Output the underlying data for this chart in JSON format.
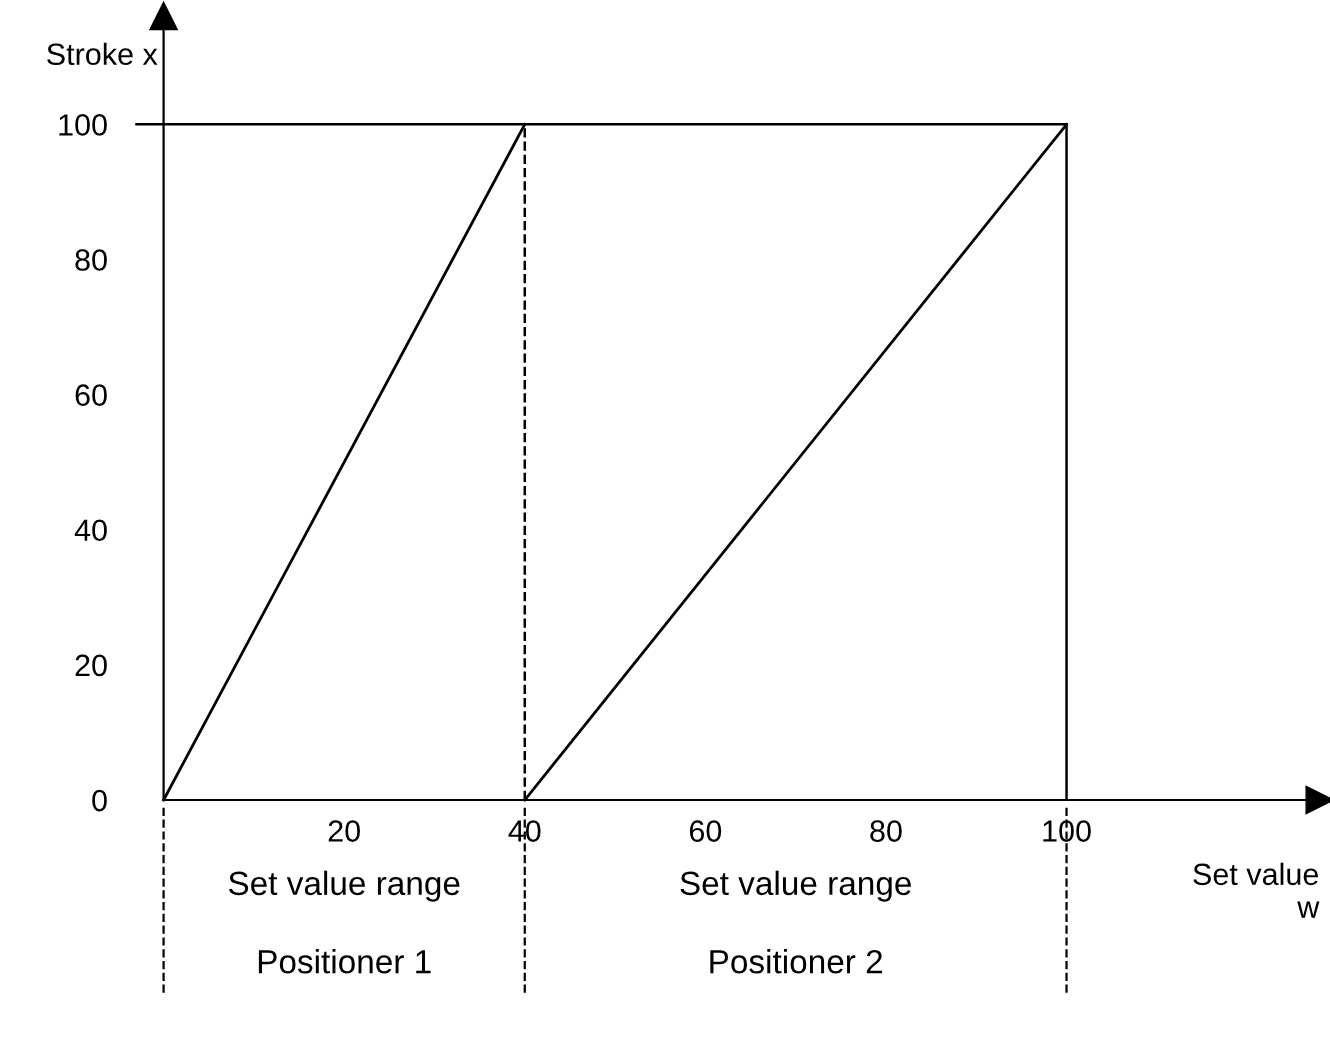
{
  "chart_data": {
    "type": "line",
    "xlabel": "Set value\nw",
    "ylabel": "Stroke x",
    "series": [
      {
        "x": [
          0,
          40
        ],
        "values": [
          0,
          100
        ],
        "color": "#000000"
      },
      {
        "x": [
          40,
          100
        ],
        "values": [
          0,
          100
        ],
        "color": "#000000"
      }
    ],
    "xlim": [
      0,
      128
    ],
    "ylim": [
      0,
      116
    ],
    "xticks": [
      20,
      40,
      60,
      80,
      100
    ],
    "yticks": [
      0,
      20,
      40,
      60,
      80,
      100
    ],
    "marker": "none",
    "line_style": "solid",
    "grid": false,
    "ref_lines": [
      {
        "axis": "x",
        "value": 40,
        "line_style": "dashed",
        "color": "#000000"
      },
      {
        "axis": "x",
        "value": 100,
        "line_style": "solid",
        "color": "#000000"
      },
      {
        "axis": "y",
        "value": 100,
        "line_style": "solid",
        "color": "#000000"
      }
    ],
    "annotations": [
      "Set value range",
      "Set value range",
      "Positioner 1",
      "Positioner 2"
    ]
  }
}
